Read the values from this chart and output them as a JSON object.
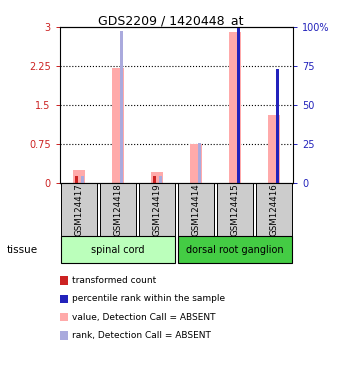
{
  "title": "GDS2209 / 1420448_at",
  "samples": [
    "GSM124417",
    "GSM124418",
    "GSM124419",
    "GSM124414",
    "GSM124415",
    "GSM124416"
  ],
  "pink_bar_heights": [
    0.25,
    2.2,
    0.2,
    0.75,
    2.9,
    1.3
  ],
  "light_blue_bar_heights": [
    0.13,
    2.93,
    0.12,
    0.76,
    null,
    null
  ],
  "red_bar_heights": [
    0.13,
    null,
    0.12,
    null,
    null,
    null
  ],
  "dark_blue_bar_heights": [
    null,
    null,
    null,
    null,
    2.97,
    2.18
  ],
  "ylim_left": [
    0,
    3
  ],
  "ylim_right": [
    0,
    100
  ],
  "yticks_left": [
    0,
    0.75,
    1.5,
    2.25,
    3
  ],
  "ytick_labels_left": [
    "0",
    "0.75",
    "1.5",
    "2.25",
    "3"
  ],
  "yticks_right": [
    0,
    25,
    50,
    75,
    100
  ],
  "ytick_labels_right": [
    "0",
    "25",
    "50",
    "75",
    "100%"
  ],
  "hlines": [
    0.75,
    1.5,
    2.25
  ],
  "pink_color": "#ffaaaa",
  "light_blue_color": "#aaaadd",
  "red_color": "#cc2222",
  "blue_color": "#2222bb",
  "bg_color": "#cccccc",
  "spinal_color": "#bbffbb",
  "ganglion_color": "#44cc44",
  "spinal_label": "spinal cord",
  "ganglion_label": "dorsal root ganglion",
  "tissue_label": "tissue",
  "legend_colors": [
    "#cc2222",
    "#2222bb",
    "#ffaaaa",
    "#aaaadd"
  ],
  "legend_labels": [
    "transformed count",
    "percentile rank within the sample",
    "value, Detection Call = ABSENT",
    "rank, Detection Call = ABSENT"
  ]
}
